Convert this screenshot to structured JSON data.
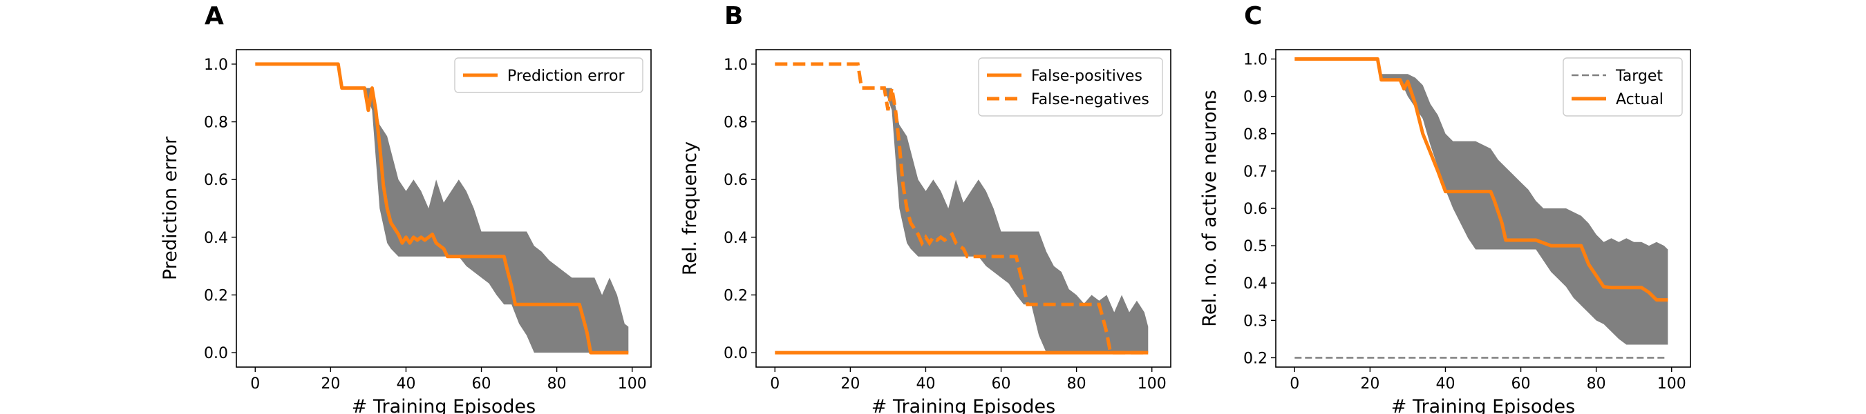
{
  "colors": {
    "orange": "#ff7f0e",
    "band": "#808080",
    "target": "#7f7f7f",
    "frame": "#000000",
    "legend_border": "#cccccc"
  },
  "chart_data": [
    {
      "panel": "A",
      "type": "line",
      "xlabel": "# Training Episodes",
      "ylabel": "Prediction error",
      "xlim": [
        -5,
        105
      ],
      "ylim": [
        -0.05,
        1.05
      ],
      "xticks": [
        0,
        20,
        40,
        60,
        80,
        100
      ],
      "yticks": [
        0.0,
        0.2,
        0.4,
        0.6,
        0.8,
        1.0
      ],
      "ytick_labels": [
        "0.0",
        "0.2",
        "0.4",
        "0.6",
        "0.8",
        "1.0"
      ],
      "legend_position": "upper right",
      "grid": false,
      "series": [
        {
          "name": "Prediction error",
          "style": "solid",
          "x": [
            0,
            22,
            23,
            29,
            30,
            31,
            32,
            33,
            34,
            35,
            36,
            37,
            38,
            39,
            40,
            41,
            42,
            43,
            44,
            45,
            46,
            47,
            48,
            49,
            50,
            51,
            52,
            56,
            66,
            67,
            68,
            69,
            86,
            87,
            88,
            89,
            90,
            99
          ],
          "y": [
            1.0,
            1.0,
            0.917,
            0.917,
            0.84,
            0.917,
            0.84,
            0.72,
            0.58,
            0.5,
            0.45,
            0.43,
            0.41,
            0.38,
            0.4,
            0.38,
            0.4,
            0.39,
            0.4,
            0.39,
            0.4,
            0.41,
            0.38,
            0.37,
            0.36,
            0.333,
            0.333,
            0.333,
            0.333,
            0.28,
            0.23,
            0.167,
            0.167,
            0.12,
            0.07,
            0.0,
            0.0,
            0.0
          ]
        }
      ],
      "band": {
        "x": [
          0,
          22,
          23,
          29,
          31,
          33,
          35,
          36,
          38,
          40,
          42,
          44,
          46,
          48,
          50,
          52,
          54,
          56,
          58,
          60,
          62,
          64,
          66,
          68,
          70,
          72,
          74,
          76,
          78,
          80,
          82,
          84,
          86,
          88,
          90,
          92,
          94,
          96,
          98,
          99
        ],
        "lower": [
          1.0,
          1.0,
          0.917,
          0.917,
          0.84,
          0.5,
          0.38,
          0.36,
          0.333,
          0.333,
          0.333,
          0.333,
          0.333,
          0.333,
          0.333,
          0.333,
          0.333,
          0.3,
          0.28,
          0.26,
          0.24,
          0.2,
          0.167,
          0.167,
          0.1,
          0.06,
          0.0,
          0.0,
          0.0,
          0.0,
          0.0,
          0.0,
          0.0,
          0.0,
          0.0,
          0.0,
          0.0,
          0.0,
          0.0,
          0.0
        ],
        "upper": [
          1.0,
          1.0,
          0.917,
          0.917,
          0.917,
          0.79,
          0.75,
          0.7,
          0.6,
          0.56,
          0.6,
          0.56,
          0.5,
          0.6,
          0.52,
          0.56,
          0.6,
          0.56,
          0.5,
          0.42,
          0.42,
          0.42,
          0.42,
          0.42,
          0.42,
          0.42,
          0.37,
          0.35,
          0.32,
          0.3,
          0.28,
          0.26,
          0.26,
          0.26,
          0.26,
          0.2,
          0.26,
          0.2,
          0.1,
          0.09
        ]
      }
    },
    {
      "panel": "B",
      "type": "line",
      "xlabel": "# Training Episodes",
      "ylabel": "Rel. frequency",
      "xlim": [
        -5,
        105
      ],
      "ylim": [
        -0.05,
        1.05
      ],
      "xticks": [
        0,
        20,
        40,
        60,
        80,
        100
      ],
      "yticks": [
        0.0,
        0.2,
        0.4,
        0.6,
        0.8,
        1.0
      ],
      "ytick_labels": [
        "0.0",
        "0.2",
        "0.4",
        "0.6",
        "0.8",
        "1.0"
      ],
      "legend_position": "upper right",
      "grid": false,
      "series": [
        {
          "name": "False-positives",
          "style": "solid",
          "x": [
            0,
            99
          ],
          "y": [
            0.0,
            0.0
          ]
        },
        {
          "name": "False-negatives",
          "style": "dashed",
          "x": [
            0,
            22,
            23,
            29,
            30,
            31,
            32,
            33,
            34,
            35,
            36,
            37,
            38,
            39,
            40,
            41,
            42,
            43,
            44,
            45,
            46,
            47,
            48,
            49,
            50,
            51,
            52,
            56,
            64,
            65,
            66,
            67,
            86,
            87,
            88,
            89,
            90,
            99
          ],
          "y": [
            1.0,
            1.0,
            0.917,
            0.917,
            0.84,
            0.917,
            0.84,
            0.72,
            0.58,
            0.5,
            0.45,
            0.43,
            0.41,
            0.38,
            0.4,
            0.38,
            0.4,
            0.39,
            0.4,
            0.39,
            0.4,
            0.41,
            0.38,
            0.37,
            0.36,
            0.333,
            0.333,
            0.333,
            0.333,
            0.28,
            0.23,
            0.167,
            0.167,
            0.12,
            0.07,
            0.0,
            0.0,
            0.0
          ]
        }
      ],
      "band": {
        "x": [
          0,
          22,
          23,
          29,
          31,
          33,
          35,
          36,
          38,
          40,
          42,
          44,
          46,
          48,
          50,
          52,
          54,
          56,
          58,
          60,
          62,
          64,
          66,
          68,
          70,
          72,
          74,
          76,
          78,
          80,
          82,
          84,
          86,
          88,
          90,
          92,
          94,
          96,
          98,
          99
        ],
        "lower": [
          1.0,
          1.0,
          0.917,
          0.917,
          0.84,
          0.5,
          0.38,
          0.36,
          0.333,
          0.333,
          0.333,
          0.333,
          0.333,
          0.333,
          0.333,
          0.333,
          0.333,
          0.3,
          0.28,
          0.26,
          0.24,
          0.2,
          0.167,
          0.167,
          0.06,
          0.0,
          0.0,
          0.0,
          0.0,
          0.0,
          0.0,
          0.0,
          0.0,
          0.0,
          0.0,
          0.0,
          0.0,
          0.0,
          0.0,
          0.0
        ],
        "upper": [
          1.0,
          1.0,
          0.917,
          0.917,
          0.917,
          0.79,
          0.75,
          0.7,
          0.6,
          0.56,
          0.6,
          0.56,
          0.5,
          0.6,
          0.52,
          0.56,
          0.6,
          0.56,
          0.5,
          0.42,
          0.42,
          0.42,
          0.42,
          0.42,
          0.42,
          0.35,
          0.3,
          0.28,
          0.22,
          0.2,
          0.17,
          0.2,
          0.18,
          0.2,
          0.14,
          0.2,
          0.14,
          0.18,
          0.14,
          0.09
        ]
      }
    },
    {
      "panel": "C",
      "type": "line",
      "xlabel": "# Training Episodes",
      "ylabel": "Rel. no. of active neurons",
      "xlim": [
        -5,
        105
      ],
      "ylim": [
        0.175,
        1.025
      ],
      "xticks": [
        0,
        20,
        40,
        60,
        80,
        100
      ],
      "yticks": [
        0.2,
        0.3,
        0.4,
        0.5,
        0.6,
        0.7,
        0.8,
        0.9,
        1.0
      ],
      "ytick_labels": [
        "0.2",
        "0.3",
        "0.4",
        "0.5",
        "0.6",
        "0.7",
        "0.8",
        "0.9",
        "1.0"
      ],
      "legend_position": "upper right",
      "grid": false,
      "series": [
        {
          "name": "Target",
          "style": "target-dashed",
          "x": [
            0,
            99
          ],
          "y": [
            0.2,
            0.2
          ]
        },
        {
          "name": "Actual",
          "style": "solid",
          "x": [
            0,
            22,
            23,
            28,
            29,
            30,
            32,
            34,
            36,
            38,
            40,
            44,
            48,
            52,
            53,
            55,
            56,
            58,
            60,
            64,
            68,
            70,
            72,
            76,
            78,
            80,
            82,
            84,
            88,
            92,
            94,
            96,
            98,
            99
          ],
          "y": [
            1.0,
            1.0,
            0.944,
            0.944,
            0.92,
            0.94,
            0.88,
            0.8,
            0.75,
            0.7,
            0.645,
            0.645,
            0.645,
            0.645,
            0.62,
            0.56,
            0.515,
            0.515,
            0.515,
            0.515,
            0.5,
            0.5,
            0.5,
            0.5,
            0.45,
            0.42,
            0.39,
            0.388,
            0.388,
            0.388,
            0.375,
            0.355,
            0.355,
            0.355
          ]
        }
      ],
      "band": {
        "x": [
          0,
          22,
          23,
          28,
          30,
          32,
          34,
          36,
          38,
          40,
          42,
          44,
          46,
          48,
          50,
          52,
          54,
          56,
          58,
          60,
          62,
          64,
          66,
          68,
          70,
          72,
          74,
          76,
          78,
          80,
          82,
          84,
          86,
          88,
          90,
          92,
          94,
          96,
          98,
          99
        ],
        "lower": [
          1.0,
          1.0,
          0.944,
          0.944,
          0.9,
          0.87,
          0.84,
          0.77,
          0.71,
          0.65,
          0.6,
          0.56,
          0.52,
          0.49,
          0.49,
          0.49,
          0.49,
          0.49,
          0.49,
          0.49,
          0.49,
          0.49,
          0.46,
          0.43,
          0.41,
          0.39,
          0.36,
          0.34,
          0.32,
          0.3,
          0.29,
          0.27,
          0.25,
          0.235,
          0.235,
          0.235,
          0.235,
          0.235,
          0.235,
          0.235
        ],
        "upper": [
          1.0,
          1.0,
          0.96,
          0.96,
          0.96,
          0.95,
          0.93,
          0.88,
          0.85,
          0.8,
          0.78,
          0.78,
          0.78,
          0.78,
          0.77,
          0.76,
          0.73,
          0.71,
          0.69,
          0.67,
          0.65,
          0.62,
          0.6,
          0.6,
          0.6,
          0.6,
          0.59,
          0.58,
          0.56,
          0.53,
          0.51,
          0.52,
          0.51,
          0.52,
          0.51,
          0.51,
          0.5,
          0.51,
          0.5,
          0.49
        ]
      }
    }
  ]
}
